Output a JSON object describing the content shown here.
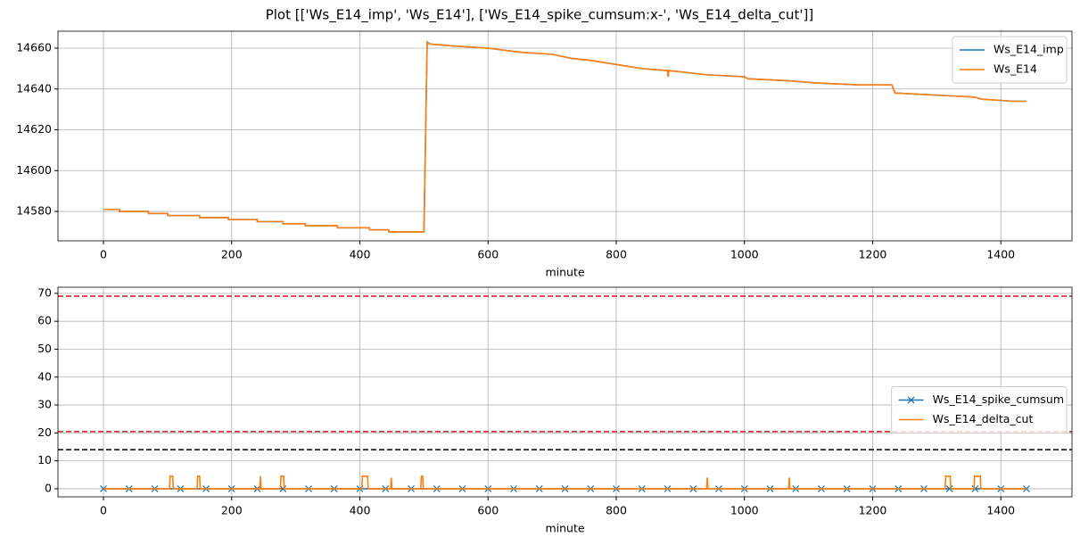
{
  "title": "Plot [['Ws_E14_imp', 'Ws_E14'], ['Ws_E14_spike_cumsum:x-', 'Ws_E14_delta_cut']]",
  "chart_data": [
    {
      "type": "line",
      "xlabel": "minute",
      "xlim": [
        -71,
        1511
      ],
      "ylim": [
        14565.6,
        14668.3
      ],
      "xticks": [
        0,
        200,
        400,
        600,
        800,
        1000,
        1200,
        1400
      ],
      "yticks": [
        14580,
        14600,
        14620,
        14640,
        14660
      ],
      "grid": true,
      "legend": "upper right",
      "series": [
        {
          "name": "Ws_E14_imp",
          "color": "#1f77b4",
          "x": [
            0,
            25,
            25,
            70,
            70,
            100,
            100,
            150,
            150,
            195,
            195,
            240,
            240,
            280,
            280,
            315,
            315,
            365,
            365,
            415,
            415,
            445,
            445,
            500,
            505,
            510,
            550,
            600,
            650,
            700,
            730,
            760,
            800,
            840,
            880,
            881,
            882,
            940,
            1000,
            1005,
            1070,
            1110,
            1180,
            1230,
            1235,
            1300,
            1360,
            1370,
            1420,
            1440
          ],
          "values": [
            14581,
            14581,
            14580,
            14580,
            14579,
            14579,
            14578,
            14578,
            14577,
            14577,
            14576,
            14576,
            14575,
            14575,
            14574,
            14574,
            14573,
            14573,
            14572,
            14572,
            14571,
            14571,
            14570,
            14570,
            14663,
            14662,
            14661,
            14660,
            14658,
            14657,
            14655,
            14654,
            14652,
            14650,
            14649,
            14646,
            14649,
            14647,
            14646,
            14645,
            14644,
            14643,
            14642,
            14642,
            14638,
            14637,
            14636,
            14635,
            14634,
            14634
          ]
        },
        {
          "name": "Ws_E14",
          "color": "#ff7f0e",
          "x": [
            0,
            25,
            25,
            70,
            70,
            100,
            100,
            150,
            150,
            195,
            195,
            240,
            240,
            280,
            280,
            315,
            315,
            365,
            365,
            415,
            415,
            445,
            445,
            500,
            505,
            510,
            550,
            600,
            650,
            700,
            730,
            760,
            800,
            840,
            880,
            881,
            882,
            940,
            1000,
            1005,
            1070,
            1110,
            1180,
            1230,
            1235,
            1300,
            1360,
            1370,
            1420,
            1440
          ],
          "values": [
            14581,
            14581,
            14580,
            14580,
            14579,
            14579,
            14578,
            14578,
            14577,
            14577,
            14576,
            14576,
            14575,
            14575,
            14574,
            14574,
            14573,
            14573,
            14572,
            14572,
            14571,
            14571,
            14570,
            14570,
            14663,
            14662,
            14661,
            14660,
            14658,
            14657,
            14655,
            14654,
            14652,
            14650,
            14649,
            14646,
            14649,
            14647,
            14646,
            14645,
            14644,
            14643,
            14642,
            14642,
            14638,
            14637,
            14636,
            14635,
            14634,
            14634
          ]
        }
      ]
    },
    {
      "type": "line",
      "xlabel": "minute",
      "xlim": [
        -71,
        1511
      ],
      "ylim": [
        -2.9,
        72.2
      ],
      "xticks": [
        0,
        200,
        400,
        600,
        800,
        1000,
        1200,
        1400
      ],
      "yticks": [
        0,
        10,
        20,
        30,
        40,
        50,
        60,
        70
      ],
      "grid": true,
      "legend": "center right",
      "hlines": [
        {
          "value": 69,
          "color": "#d62728",
          "linestyle": "dashed"
        },
        {
          "value": 20.5,
          "color": "#d62728",
          "linestyle": "dashed"
        },
        {
          "value": 14,
          "color": "#000000",
          "linestyle": "dashed"
        }
      ],
      "series": [
        {
          "name": "Ws_E14_spike_cumsum",
          "color": "#1f77b4",
          "marker": "x",
          "x": [
            0,
            40,
            80,
            120,
            160,
            200,
            240,
            280,
            320,
            360,
            400,
            440,
            480,
            520,
            560,
            600,
            640,
            680,
            720,
            760,
            800,
            840,
            880,
            920,
            960,
            1000,
            1040,
            1080,
            1120,
            1160,
            1200,
            1240,
            1280,
            1320,
            1360,
            1400,
            1440
          ],
          "values": [
            0,
            0,
            0,
            0,
            0,
            0,
            0,
            0,
            0,
            0,
            0,
            0,
            0,
            0,
            0,
            0,
            0,
            0,
            0,
            0,
            0,
            0,
            0,
            0,
            0,
            0,
            0,
            0,
            0,
            0,
            0,
            0,
            0,
            0,
            0,
            0,
            0
          ]
        },
        {
          "name": "Ws_E14_delta_cut",
          "color": "#ff7f0e",
          "x": [
            0,
            103,
            104,
            108,
            109,
            146,
            147,
            150,
            151,
            244,
            245,
            246,
            276,
            277,
            281,
            282,
            403,
            404,
            412,
            413,
            448,
            449,
            450,
            495,
            496,
            498,
            499,
            941,
            942,
            943,
            1069,
            1070,
            1071,
            1313,
            1314,
            1321,
            1322,
            1358,
            1359,
            1368,
            1369,
            1440
          ],
          "values": [
            0,
            0,
            4.5,
            4.5,
            0,
            0,
            4.5,
            4.5,
            0,
            0,
            4.5,
            0,
            0,
            4.5,
            4.5,
            0,
            0,
            4.5,
            4.5,
            0,
            0,
            4,
            0,
            0,
            4.5,
            4.5,
            0,
            0,
            4,
            0,
            0,
            4,
            0,
            0,
            4.5,
            4.5,
            0,
            0,
            4.5,
            4.5,
            0,
            0
          ]
        }
      ]
    }
  ]
}
